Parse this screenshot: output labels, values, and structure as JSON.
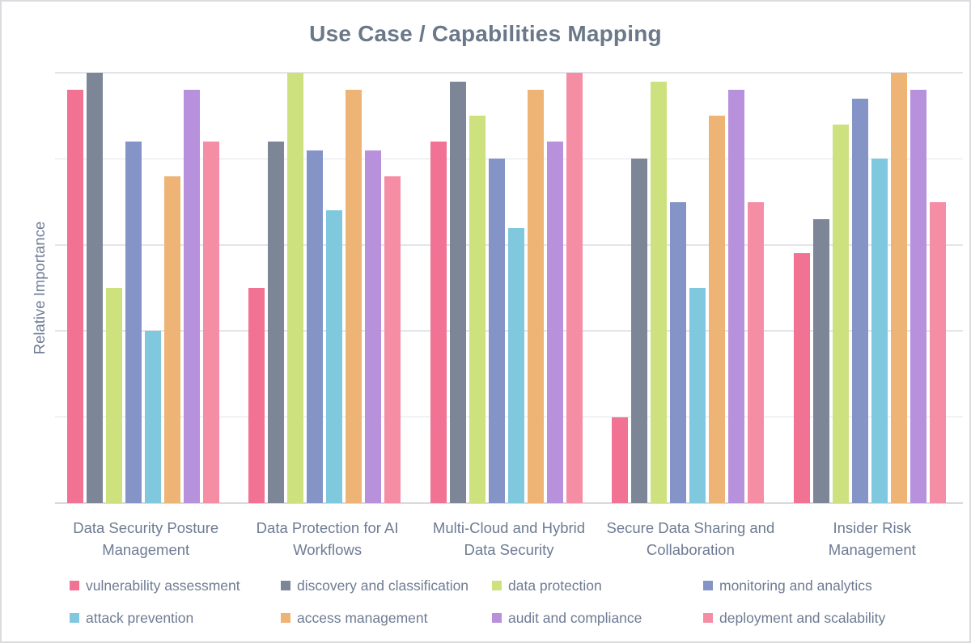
{
  "window": {
    "background": "#ffffff",
    "border_color": "#d9dbdf"
  },
  "colors": {
    "title_text": "#6a7889",
    "axis_text": "#6e7b93",
    "gridline": "#e3e5e9",
    "baseline": "#d6d9dd"
  },
  "chart_data": {
    "type": "bar",
    "title": "Use Case / Capabilities Mapping",
    "xlabel": "",
    "ylabel": "Relative Importance",
    "ylim": [
      0,
      100
    ],
    "y_tick_labels_shown": false,
    "grid": true,
    "gridline_values": [
      0,
      20,
      40,
      60,
      80,
      100
    ],
    "legend_position": "bottom",
    "legend_columns": 4,
    "categories": [
      "Data Security Posture\nManagement",
      "Data Protection for AI\nWorkflows",
      "Multi-Cloud and Hybrid\nData Security",
      "Secure Data Sharing and\nCollaboration",
      "Insider Risk\nManagement"
    ],
    "series": [
      {
        "name": "vulnerability assessment",
        "color": "#f17292",
        "values": [
          96,
          50,
          84,
          20,
          58
        ]
      },
      {
        "name": "discovery and classification",
        "color": "#7d8697",
        "values": [
          100,
          84,
          98,
          80,
          66
        ]
      },
      {
        "name": "data protection",
        "color": "#cde17f",
        "values": [
          50,
          100,
          90,
          98,
          88
        ]
      },
      {
        "name": "monitoring and analytics",
        "color": "#8594c7",
        "values": [
          84,
          82,
          80,
          70,
          94
        ]
      },
      {
        "name": "attack prevention",
        "color": "#7fc8dd",
        "values": [
          40,
          68,
          64,
          50,
          80
        ]
      },
      {
        "name": "access management",
        "color": "#edb476",
        "values": [
          76,
          96,
          96,
          90,
          100
        ]
      },
      {
        "name": "audit and compliance",
        "color": "#b791db",
        "values": [
          96,
          82,
          84,
          96,
          96
        ]
      },
      {
        "name": "deployment and scalability",
        "color": "#f58da5",
        "values": [
          84,
          76,
          100,
          70,
          70
        ]
      }
    ]
  }
}
